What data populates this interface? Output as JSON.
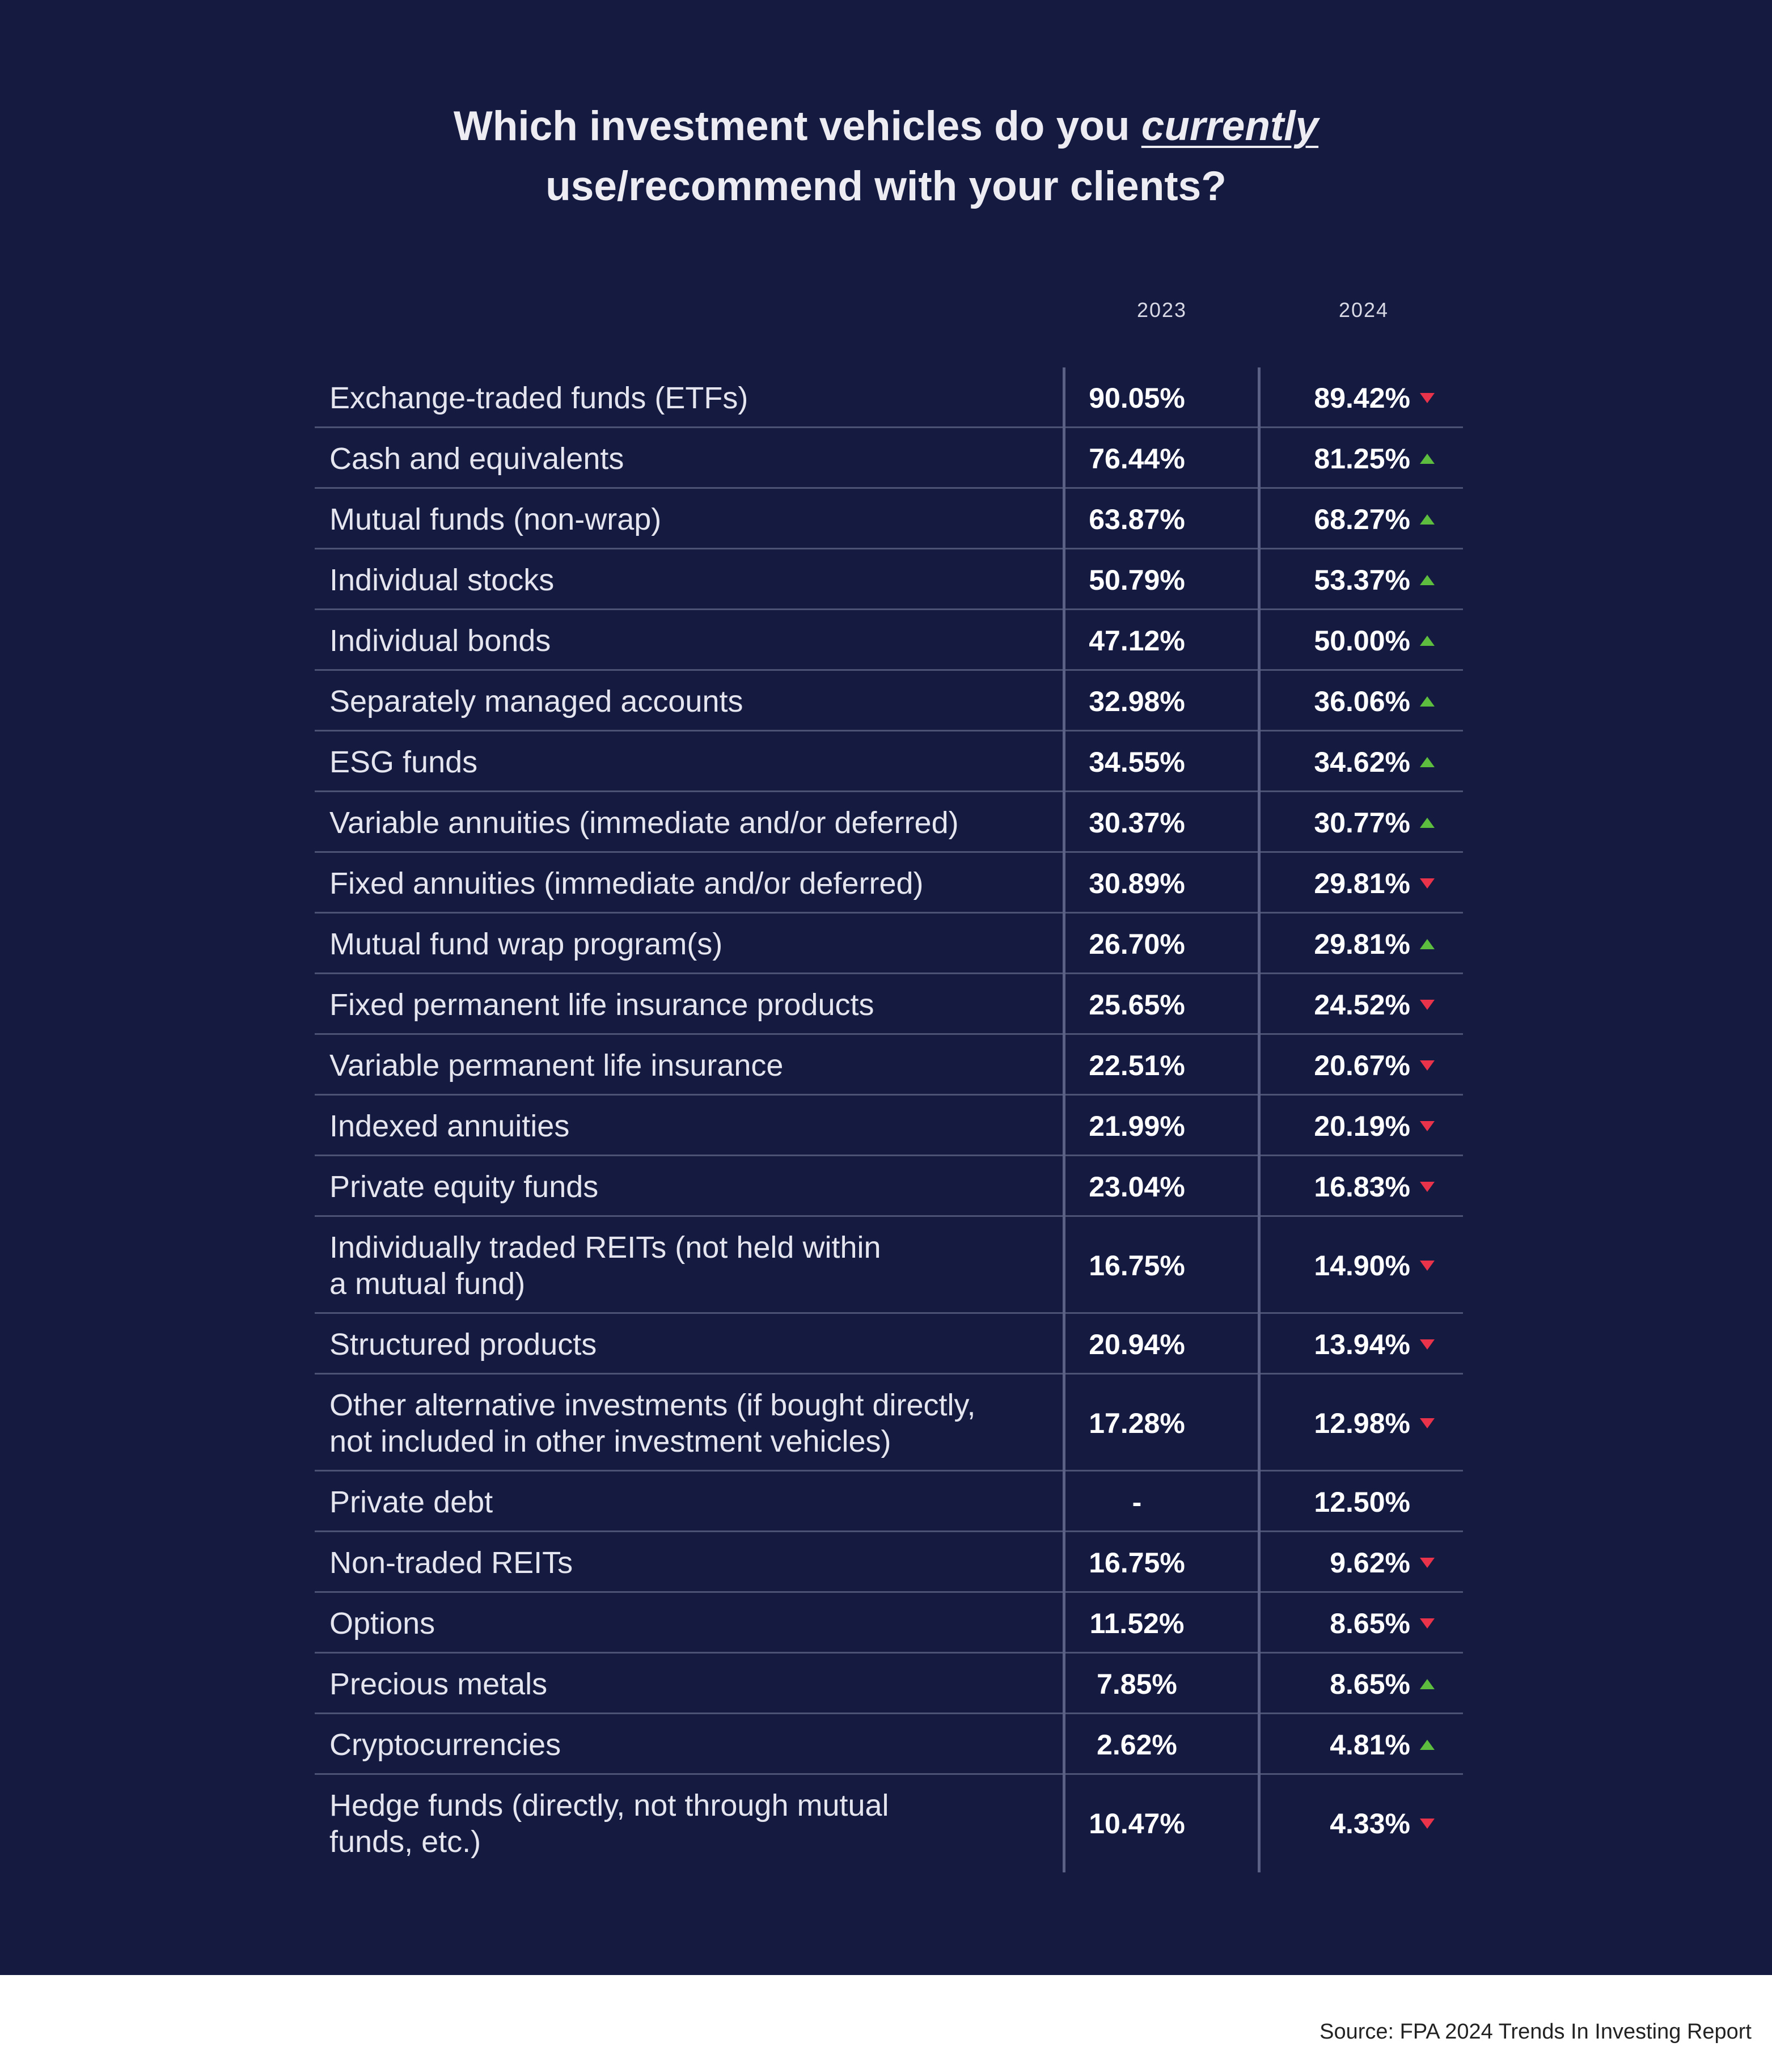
{
  "title": {
    "line1_before": "Which investment vehicles do you ",
    "line1_emphasis": "currently",
    "line2": "use/recommend with your clients?"
  },
  "source": "Source: FPA 2024 Trends In Investing Report",
  "colors": {
    "background": "#141a40",
    "up": "#5cbd3e",
    "down": "#e8334a"
  },
  "chart_data": {
    "type": "table",
    "title": "Which investment vehicles do you currently use/recommend with your clients?",
    "columns": [
      "2023",
      "2024"
    ],
    "rows": [
      {
        "label": "Exchange-traded funds (ETFs)",
        "v2023": "90.05%",
        "v2024": "89.42%",
        "trend": "down"
      },
      {
        "label": "Cash and equivalents",
        "v2023": "76.44%",
        "v2024": "81.25%",
        "trend": "up"
      },
      {
        "label": "Mutual funds (non-wrap)",
        "v2023": "63.87%",
        "v2024": "68.27%",
        "trend": "up"
      },
      {
        "label": "Individual stocks",
        "v2023": "50.79%",
        "v2024": "53.37%",
        "trend": "up"
      },
      {
        "label": "Individual bonds",
        "v2023": "47.12%",
        "v2024": "50.00%",
        "trend": "up"
      },
      {
        "label": "Separately managed accounts",
        "v2023": "32.98%",
        "v2024": "36.06%",
        "trend": "up"
      },
      {
        "label": "ESG funds",
        "v2023": "34.55%",
        "v2024": "34.62%",
        "trend": "up"
      },
      {
        "label": "Variable annuities (immediate and/or deferred)",
        "v2023": "30.37%",
        "v2024": "30.77%",
        "trend": "up"
      },
      {
        "label": "Fixed annuities (immediate and/or deferred)",
        "v2023": "30.89%",
        "v2024": "29.81%",
        "trend": "down"
      },
      {
        "label": "Mutual fund wrap program(s)",
        "v2023": "26.70%",
        "v2024": "29.81%",
        "trend": "up"
      },
      {
        "label": "Fixed permanent life insurance products",
        "v2023": "25.65%",
        "v2024": "24.52%",
        "trend": "down"
      },
      {
        "label": "Variable permanent life insurance",
        "v2023": "22.51%",
        "v2024": "20.67%",
        "trend": "down"
      },
      {
        "label": "Indexed annuities",
        "v2023": "21.99%",
        "v2024": "20.19%",
        "trend": "down"
      },
      {
        "label": "Private equity funds",
        "v2023": "23.04%",
        "v2024": "16.83%",
        "trend": "down"
      },
      {
        "label": "Individually traded REITs (not held within\n a mutual fund)",
        "v2023": "16.75%",
        "v2024": "14.90%",
        "trend": "down"
      },
      {
        "label": "Structured products",
        "v2023": "20.94%",
        "v2024": "13.94%",
        "trend": "down"
      },
      {
        "label": "Other alternative investments (if bought directly,\nnot included in other investment vehicles)",
        "v2023": "17.28%",
        "v2024": "12.98%",
        "trend": "down"
      },
      {
        "label": "Private debt",
        "v2023": "-",
        "v2024": "12.50%",
        "trend": "none"
      },
      {
        "label": "Non-traded REITs",
        "v2023": "16.75%",
        "v2024": "9.62%",
        "trend": "down"
      },
      {
        "label": "Options",
        "v2023": "11.52%",
        "v2024": "8.65%",
        "trend": "down"
      },
      {
        "label": "Precious metals",
        "v2023": "7.85%",
        "v2024": "8.65%",
        "trend": "up"
      },
      {
        "label": "Cryptocurrencies",
        "v2023": "2.62%",
        "v2024": "4.81%",
        "trend": "up"
      },
      {
        "label": "Hedge funds (directly, not through mutual\nfunds, etc.)",
        "v2023": "10.47%",
        "v2024": "4.33%",
        "trend": "down"
      }
    ]
  }
}
